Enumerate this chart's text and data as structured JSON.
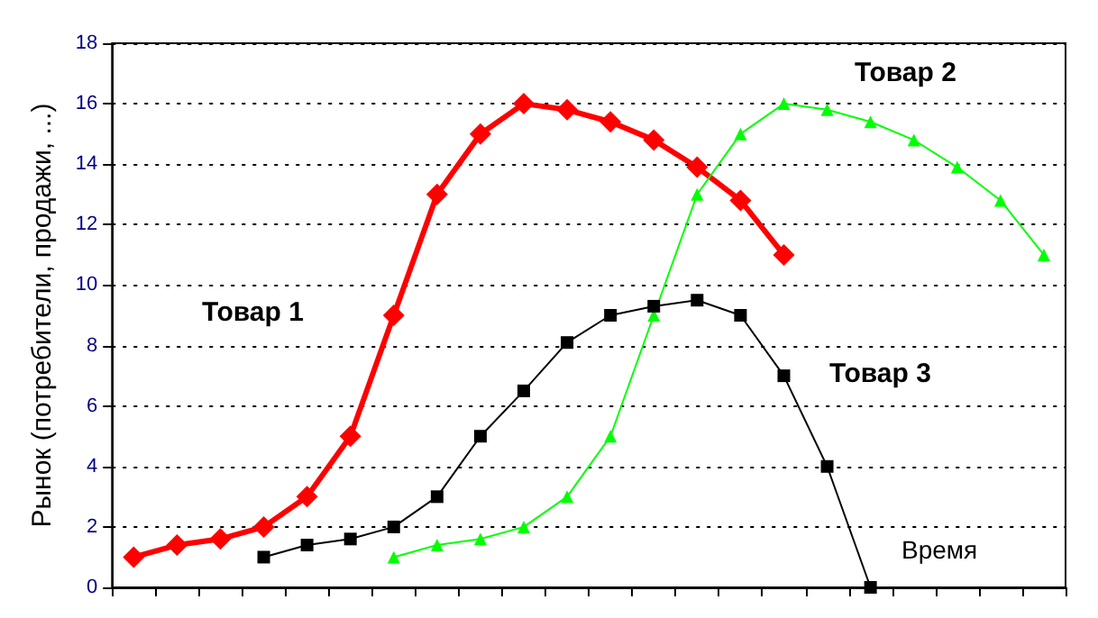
{
  "chart_data": {
    "type": "line",
    "xlabel": "Время",
    "ylabel": "Рынок (потребители, продажи, ...)",
    "categories": [
      null,
      null,
      null,
      null,
      null,
      null,
      null,
      null,
      null,
      null,
      null,
      null,
      null,
      null,
      null,
      null,
      null,
      null,
      null,
      null,
      null,
      null
    ],
    "series": [
      {
        "name": "Товар 1",
        "color": "#ff0000",
        "marker": "diamond",
        "values": [
          1,
          1.4,
          1.6,
          2,
          3,
          5,
          9,
          13,
          15,
          16,
          15.8,
          15.4,
          14.8,
          13.9,
          12.8,
          11,
          null,
          null,
          null,
          null,
          null,
          null
        ]
      },
      {
        "name": "Товар 2",
        "color": "#00ff00",
        "marker": "triangle",
        "values": [
          null,
          null,
          null,
          null,
          null,
          null,
          1,
          1.4,
          1.6,
          2,
          3,
          5,
          9,
          13,
          15,
          16,
          15.8,
          15.4,
          14.8,
          13.9,
          12.8,
          11
        ]
      },
      {
        "name": "Товар 3",
        "color": "#000000",
        "marker": "square",
        "values": [
          null,
          null,
          null,
          1,
          1.4,
          1.6,
          2,
          3,
          5,
          6.5,
          8.1,
          9,
          9.3,
          9.5,
          9,
          7,
          4,
          0,
          null,
          null,
          null,
          null
        ]
      }
    ],
    "ylim": [
      0,
      18
    ],
    "yticks": [
      0,
      2,
      4,
      6,
      8,
      10,
      12,
      14,
      16,
      18
    ],
    "grid": "y",
    "legend": false,
    "tick_labels": "y"
  }
}
